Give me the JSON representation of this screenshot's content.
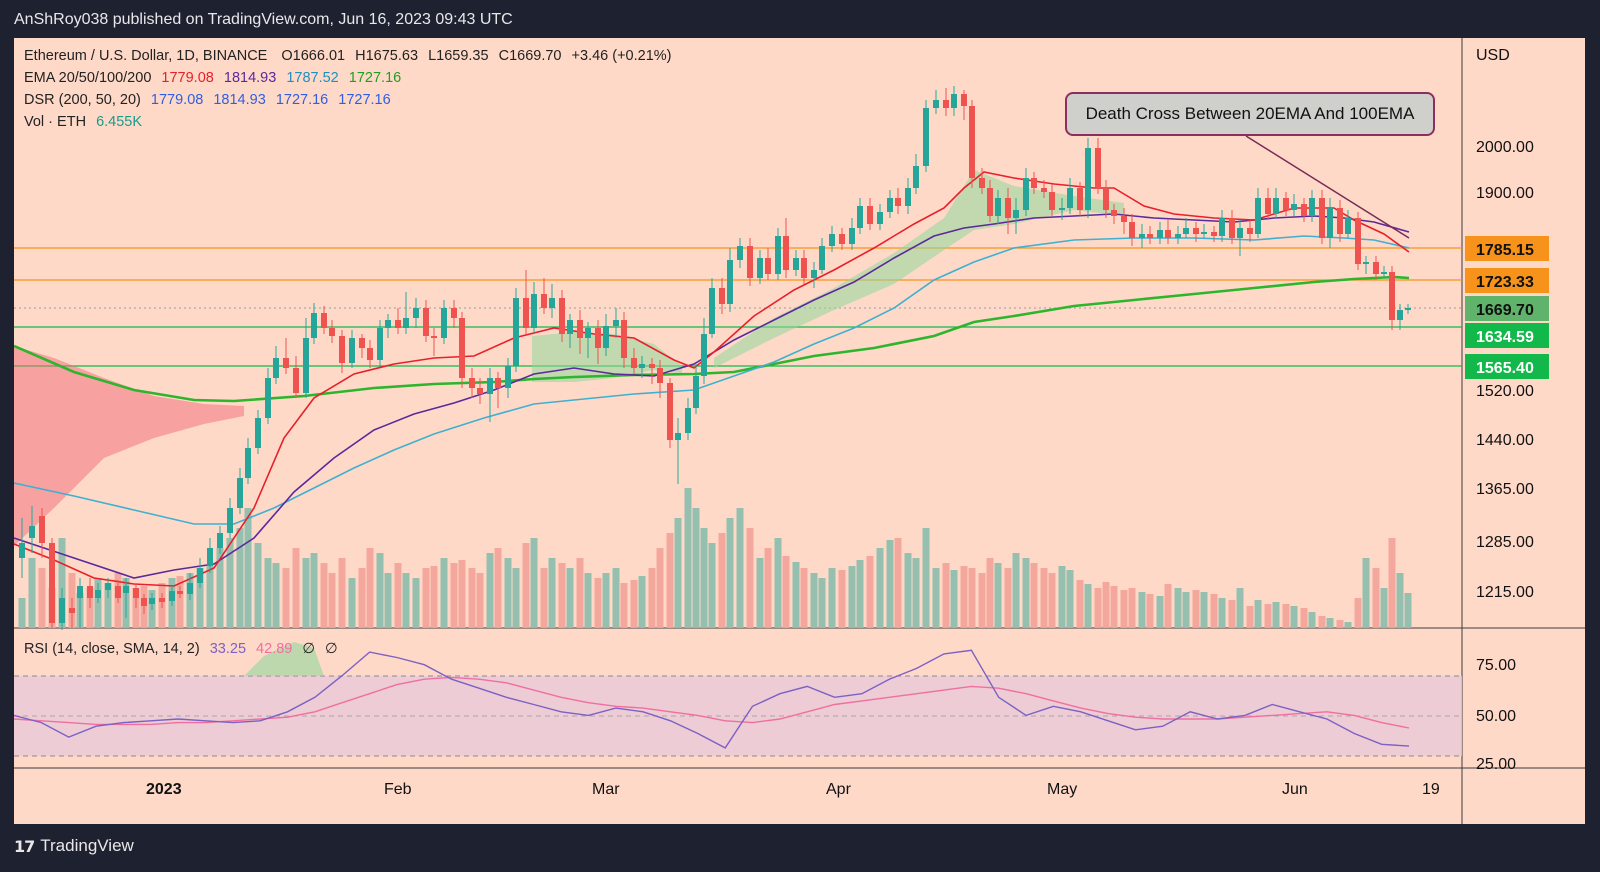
{
  "header": {
    "published_line": "AnShRoy038 published on TradingView.com, Jun 16, 2023 09:43 UTC"
  },
  "footer": {
    "brand": "TradingView",
    "logo_text": "17"
  },
  "legend": {
    "symbol": "Ethereum / U.S. Dollar, 1D, BINANCE",
    "ohlc": {
      "o_label": "O",
      "o": "1666.01",
      "h_label": "H",
      "h": "1675.63",
      "l_label": "L",
      "l": "1659.35",
      "c_label": "C",
      "c": "1669.70",
      "change": "+3.46 (+0.21%)"
    },
    "ema": {
      "label": "EMA 20/50/100/200",
      "v1": "1779.08",
      "v2": "1814.93",
      "v3": "1787.52",
      "v4": "1727.16"
    },
    "dsr": {
      "label": "DSR (200, 50, 20)",
      "v1": "1779.08",
      "v2": "1814.93",
      "v3": "1727.16",
      "v4": "1727.16"
    },
    "vol": {
      "label": "Vol · ETH",
      "value": "6.455K"
    },
    "rsi": {
      "label": "RSI (14, close, SMA, 14, 2)",
      "v1": "33.25",
      "v2": "42.89",
      "v3": "∅",
      "v4": "∅"
    }
  },
  "annotation": {
    "text": "Death Cross Between 20EMA And 100EMA"
  },
  "colors": {
    "background": "#ffd9c8",
    "up": "#26a69a",
    "down": "#ef5350",
    "ema20": "#e8202a",
    "ema50": "#5a2a9a",
    "ema100": "#3fb0d0",
    "ema200": "#2db52d",
    "rsi": "#7b61c4",
    "rsi_ma": "#f06fa0",
    "level_orange": "#f7931a",
    "level_green": "#12b94a"
  },
  "chart_data": [
    {
      "type": "candlestick",
      "currency": "USD",
      "y_ticks": [
        "2000.00",
        "1900.00",
        "1520.00",
        "1440.00",
        "1365.00",
        "1285.00",
        "1215.00"
      ],
      "x_ticks": [
        "2023",
        "Feb",
        "Mar",
        "Apr",
        "May",
        "Jun",
        "19"
      ],
      "price_levels": [
        {
          "value": "1785.15",
          "color": "orange"
        },
        {
          "value": "1723.33",
          "color": "orange"
        },
        {
          "value": "1669.70",
          "color": "green"
        },
        {
          "value": "1634.59",
          "color": "green"
        },
        {
          "value": "1565.40",
          "color": "green"
        }
      ],
      "series": [
        {
          "name": "EMA 20",
          "values": [
            1210,
            1200,
            1195,
            1200,
            1260,
            1390,
            1510,
            1560,
            1580,
            1590,
            1600,
            1650,
            1700,
            1740,
            1760,
            1800,
            1830,
            1860,
            1930,
            1880,
            1860,
            1860,
            1850,
            1840,
            1830,
            1830,
            1840,
            1850,
            1855,
            1820,
            1779
          ]
        },
        {
          "name": "EMA 50",
          "values": [
            1240,
            1230,
            1220,
            1230,
            1260,
            1330,
            1420,
            1480,
            1520,
            1555,
            1570,
            1575,
            1590,
            1620,
            1650,
            1700,
            1730,
            1760,
            1800,
            1810,
            1820,
            1820,
            1830,
            1820,
            1810,
            1810,
            1820,
            1840,
            1840,
            1830,
            1815
          ]
        },
        {
          "name": "EMA 100",
          "values": [
            1350,
            1340,
            1330,
            1330,
            1340,
            1370,
            1410,
            1440,
            1470,
            1490,
            1510,
            1520,
            1530,
            1550,
            1570,
            1600,
            1630,
            1660,
            1700,
            1720,
            1740,
            1750,
            1760,
            1765,
            1770,
            1775,
            1785,
            1795,
            1800,
            1800,
            1788
          ]
        },
        {
          "name": "EMA 200",
          "values": [
            1600,
            1570,
            1550,
            1540,
            1540,
            1550,
            1560,
            1565,
            1570,
            1575,
            1575,
            1578,
            1580,
            1590,
            1600,
            1615,
            1630,
            1650,
            1665,
            1680,
            1690,
            1700,
            1705,
            1710,
            1712,
            1715,
            1720,
            1725,
            1728,
            1728,
            1727
          ]
        }
      ],
      "annotation": "Death Cross Between 20EMA And 100EMA"
    },
    {
      "type": "line",
      "title": "RSI (14, close, SMA, 14, 2)",
      "y_ticks": [
        "75.00",
        "50.00",
        "25.00"
      ],
      "ylim": [
        22,
        95
      ],
      "series": [
        {
          "name": "RSI",
          "values": [
            50,
            46,
            38,
            44,
            46,
            47,
            48,
            47,
            46,
            47,
            52,
            60,
            72,
            85,
            82,
            78,
            70,
            65,
            60,
            56,
            52,
            50,
            54,
            52,
            47,
            40,
            32,
            55,
            62,
            66,
            60,
            62,
            70,
            76,
            84,
            86,
            60,
            50,
            55,
            52,
            47,
            42,
            44,
            52,
            48,
            50,
            56,
            52,
            48,
            40,
            34,
            33
          ]
        },
        {
          "name": "RSI-based MA",
          "values": [
            48,
            47,
            46,
            45,
            45,
            45,
            46,
            46,
            47,
            48,
            49,
            52,
            57,
            62,
            67,
            70,
            71,
            70,
            68,
            64,
            60,
            57,
            55,
            54,
            52,
            50,
            47,
            46,
            48,
            52,
            56,
            58,
            60,
            62,
            64,
            66,
            65,
            62,
            58,
            54,
            51,
            49,
            48,
            48,
            48,
            49,
            50,
            51,
            52,
            50,
            46,
            43
          ]
        }
      ]
    }
  ]
}
